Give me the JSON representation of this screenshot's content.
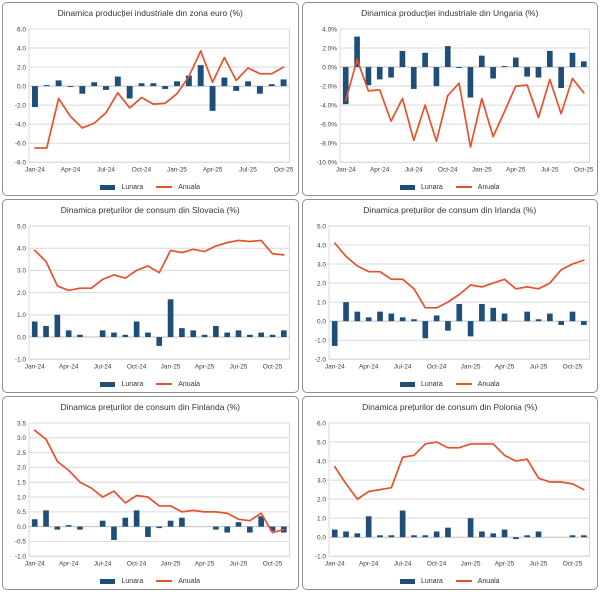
{
  "legend": {
    "monthly": "Lunara",
    "annual": "Anuala"
  },
  "colors": {
    "bar": "#1F4E79",
    "line": "#E7512B",
    "grid": "#D9D9D9",
    "zero_axis": "#BFBFBF",
    "axis_text": "#404040",
    "title_text": "#353535",
    "panel_border": "#8F8F8F",
    "background": "#FFFFFF"
  },
  "chart_data": [
    {
      "type": "combo",
      "title": "Dinamica producției industriale din zona euro (%)",
      "categories": [
        "Jan-24",
        "Feb-24",
        "Mar-24",
        "Apr-24",
        "May-24",
        "Jun-24",
        "Jul-24",
        "Aug-24",
        "Sep-24",
        "Oct-24",
        "Nov-24",
        "Dec-24",
        "Jan-25",
        "Feb-25",
        "Mar-25",
        "Apr-25",
        "May-25",
        "Jun-25",
        "Jul-25",
        "Aug-25",
        "Sep-25",
        "Oct-25"
      ],
      "x_tick_labels": [
        "Jan-24",
        "Apr-24",
        "Jul-24",
        "Oct-24",
        "Jan-25",
        "Apr-25",
        "Jul-25",
        "Oct-25"
      ],
      "y_axis": {
        "max": 6.0,
        "min": -8.0,
        "step": 2.0,
        "suffix": "",
        "grid": true
      },
      "legend_position": "bottom",
      "series": [
        {
          "name": "Lunara",
          "type": "bar",
          "values": [
            -2.2,
            0.1,
            0.6,
            -0.1,
            -0.8,
            0.4,
            -0.4,
            1.0,
            -1.3,
            0.3,
            0.3,
            -0.3,
            0.5,
            1.1,
            2.2,
            -2.6,
            0.9,
            -0.5,
            0.5,
            -0.8,
            0.2,
            0.7
          ]
        },
        {
          "name": "Anuala",
          "type": "line",
          "values": [
            -6.5,
            -6.5,
            -1.3,
            -3.2,
            -4.4,
            -3.9,
            -2.8,
            -0.7,
            -2.3,
            -1.2,
            -1.9,
            -1.8,
            -0.8,
            1.0,
            3.7,
            0.4,
            3.0,
            0.6,
            1.9,
            1.3,
            1.3,
            2.0
          ]
        }
      ]
    },
    {
      "type": "combo",
      "title": "Dinamica producției industriale din Ungaria (%)",
      "categories": [
        "Jan-24",
        "Feb-24",
        "Mar-24",
        "Apr-24",
        "May-24",
        "Jun-24",
        "Jul-24",
        "Aug-24",
        "Sep-24",
        "Oct-24",
        "Nov-24",
        "Dec-24",
        "Jan-25",
        "Feb-25",
        "Mar-25",
        "Apr-25",
        "May-25",
        "Jun-25",
        "Jul-25",
        "Aug-25",
        "Sep-25",
        "Oct-25"
      ],
      "x_tick_labels": [
        "Jan-24",
        "Apr-24",
        "Jul-24",
        "Oct-24",
        "Jan-25",
        "Apr-25",
        "Jul-25",
        "Oct-25"
      ],
      "y_axis": {
        "max": 4.0,
        "min": -10.0,
        "step": 2.0,
        "suffix": "%",
        "grid": true
      },
      "legend_position": "bottom",
      "series": [
        {
          "name": "Lunara",
          "type": "bar",
          "values": [
            -3.9,
            3.2,
            -1.9,
            -1.3,
            -1.1,
            1.7,
            -2.3,
            1.5,
            -2.0,
            2.2,
            -0.1,
            -3.2,
            1.2,
            -1.2,
            0.1,
            1.0,
            -1.0,
            -1.1,
            1.7,
            -2.2,
            1.5,
            0.6
          ]
        },
        {
          "name": "Anuala",
          "type": "line",
          "values": [
            -3.5,
            0.8,
            -2.5,
            -2.4,
            -5.7,
            -3.3,
            -7.7,
            -4.0,
            -7.8,
            -3.0,
            -1.7,
            -8.4,
            -3.3,
            -7.3,
            -4.7,
            -2.0,
            -1.9,
            -5.3,
            -1.3,
            -4.9,
            -1.2,
            -2.7
          ]
        }
      ]
    },
    {
      "type": "combo",
      "title": "Dinamica prețurilor de consum din Slovacia (%)",
      "categories": [
        "Jan-24",
        "Feb-24",
        "Mar-24",
        "Apr-24",
        "May-24",
        "Jun-24",
        "Jul-24",
        "Aug-24",
        "Sep-24",
        "Oct-24",
        "Nov-24",
        "Dec-24",
        "Jan-25",
        "Feb-25",
        "Mar-25",
        "Apr-25",
        "May-25",
        "Jun-25",
        "Jul-25",
        "Aug-25",
        "Sep-25",
        "Oct-25",
        "Nov-25"
      ],
      "x_tick_labels": [
        "Jan-24",
        "Apr-24",
        "Jul-24",
        "Oct-24",
        "Jan-25",
        "Apr-25",
        "Jul-25",
        "Oct-25"
      ],
      "y_axis": {
        "max": 5.0,
        "min": -1.0,
        "step": 1.0,
        "suffix": "",
        "grid": true
      },
      "legend_position": "bottom",
      "series": [
        {
          "name": "Lunara",
          "type": "bar",
          "values": [
            0.7,
            0.5,
            1.0,
            0.3,
            0.1,
            0.0,
            0.3,
            0.2,
            0.1,
            0.7,
            0.2,
            -0.4,
            1.7,
            0.4,
            0.3,
            0.1,
            0.5,
            0.2,
            0.3,
            0.1,
            0.2,
            0.1,
            0.3
          ]
        },
        {
          "name": "Anuala",
          "type": "line",
          "values": [
            3.9,
            3.4,
            2.3,
            2.1,
            2.2,
            2.2,
            2.6,
            2.8,
            2.65,
            3.0,
            3.2,
            2.9,
            3.9,
            3.8,
            3.95,
            3.85,
            4.1,
            4.25,
            4.35,
            4.3,
            4.35,
            3.75,
            3.7
          ]
        }
      ]
    },
    {
      "type": "combo",
      "title": "Dinamica prețurilor de consum din Irlanda (%)",
      "categories": [
        "Jan-24",
        "Feb-24",
        "Mar-24",
        "Apr-24",
        "May-24",
        "Jun-24",
        "Jul-24",
        "Aug-24",
        "Sep-24",
        "Oct-24",
        "Nov-24",
        "Dec-24",
        "Jan-25",
        "Feb-25",
        "Mar-25",
        "Apr-25",
        "May-25",
        "Jun-25",
        "Jul-25",
        "Aug-25",
        "Sep-25",
        "Oct-25",
        "Nov-25"
      ],
      "x_tick_labels": [
        "Jan-24",
        "Apr-24",
        "Jul-24",
        "Oct-24",
        "Jan-25",
        "Apr-25",
        "Jul-25",
        "Oct-25"
      ],
      "y_axis": {
        "max": 5.0,
        "min": -2.0,
        "step": 1.0,
        "suffix": "",
        "grid": true
      },
      "legend_position": "bottom",
      "series": [
        {
          "name": "Lunara",
          "type": "bar",
          "values": [
            -1.3,
            1.0,
            0.5,
            0.2,
            0.5,
            0.4,
            0.2,
            0.1,
            -0.9,
            0.3,
            -0.5,
            0.9,
            -0.8,
            0.9,
            0.7,
            0.4,
            0.0,
            0.5,
            0.1,
            0.4,
            -0.2,
            0.5,
            -0.2
          ]
        },
        {
          "name": "Anuala",
          "type": "line",
          "values": [
            4.1,
            3.4,
            2.9,
            2.6,
            2.6,
            2.2,
            2.2,
            1.7,
            0.7,
            0.7,
            1.0,
            1.4,
            1.9,
            1.8,
            2.0,
            2.2,
            1.7,
            1.8,
            1.7,
            2.0,
            2.7,
            3.0,
            3.2
          ]
        }
      ]
    },
    {
      "type": "combo",
      "title": "Dinamica prețurilor de consum din Finlanda (%)",
      "categories": [
        "Jan-24",
        "Feb-24",
        "Mar-24",
        "Apr-24",
        "May-24",
        "Jun-24",
        "Jul-24",
        "Aug-24",
        "Sep-24",
        "Oct-24",
        "Nov-24",
        "Dec-24",
        "Jan-25",
        "Feb-25",
        "Mar-25",
        "Apr-25",
        "May-25",
        "Jun-25",
        "Jul-25",
        "Aug-25",
        "Sep-25",
        "Oct-25",
        "Nov-25"
      ],
      "x_tick_labels": [
        "Jan-24",
        "Apr-24",
        "Jul-24",
        "Oct-24",
        "Jan-25",
        "Apr-25",
        "Jul-25",
        "Oct-25"
      ],
      "y_axis": {
        "max": 3.5,
        "min": -1.0,
        "step": 0.5,
        "suffix": "",
        "grid": true
      },
      "legend_position": "bottom",
      "series": [
        {
          "name": "Lunara",
          "type": "bar",
          "values": [
            0.25,
            0.55,
            -0.1,
            0.05,
            -0.1,
            0.0,
            0.2,
            -0.45,
            0.3,
            0.55,
            -0.35,
            -0.05,
            0.2,
            0.3,
            0.0,
            0.0,
            -0.1,
            -0.2,
            0.15,
            -0.2,
            0.35,
            -0.15,
            -0.2
          ]
        },
        {
          "name": "Anuala",
          "type": "line",
          "values": [
            3.25,
            2.95,
            2.2,
            1.9,
            1.5,
            1.3,
            1.0,
            1.2,
            0.8,
            1.05,
            1.0,
            0.7,
            0.7,
            0.5,
            0.55,
            0.5,
            0.5,
            0.45,
            0.25,
            0.2,
            0.45,
            -0.2,
            -0.1
          ]
        }
      ]
    },
    {
      "type": "combo",
      "title": "Dinamica prețurilor de consum din Polonia (%)",
      "categories": [
        "Jan-24",
        "Feb-24",
        "Mar-24",
        "Apr-24",
        "May-24",
        "Jun-24",
        "Jul-24",
        "Aug-24",
        "Sep-24",
        "Oct-24",
        "Nov-24",
        "Dec-24",
        "Jan-25",
        "Feb-25",
        "Mar-25",
        "Apr-25",
        "May-25",
        "Jun-25",
        "Jul-25",
        "Aug-25",
        "Sep-25",
        "Oct-25",
        "Nov-25"
      ],
      "x_tick_labels": [
        "Jan-24",
        "Apr-24",
        "Jul-24",
        "Oct-24",
        "Jan-25",
        "Apr-25",
        "Jul-25",
        "Oct-25"
      ],
      "y_axis": {
        "max": 6.0,
        "min": -1.0,
        "step": 1.0,
        "suffix": "",
        "grid": true
      },
      "legend_position": "bottom",
      "series": [
        {
          "name": "Lunara",
          "type": "bar",
          "values": [
            0.4,
            0.3,
            0.2,
            1.1,
            0.1,
            0.1,
            1.4,
            0.1,
            0.1,
            0.3,
            0.5,
            0.0,
            1.0,
            0.3,
            0.2,
            0.4,
            -0.1,
            0.1,
            0.3,
            0.0,
            0.0,
            0.1,
            0.1
          ]
        },
        {
          "name": "Anuala",
          "type": "line",
          "values": [
            3.7,
            2.8,
            2.0,
            2.4,
            2.5,
            2.6,
            4.2,
            4.3,
            4.9,
            5.0,
            4.7,
            4.7,
            4.9,
            4.9,
            4.9,
            4.3,
            4.0,
            4.1,
            3.1,
            2.9,
            2.9,
            2.8,
            2.5
          ]
        }
      ]
    }
  ]
}
